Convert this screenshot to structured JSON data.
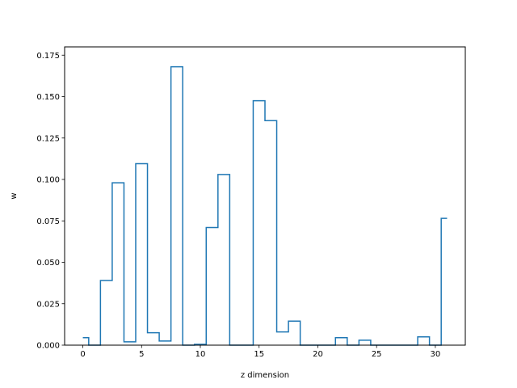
{
  "chart_data": {
    "type": "line",
    "drawstyle": "steps-mid",
    "title": "",
    "xlabel": "z dimension",
    "ylabel": "w",
    "xlim": [
      -1.55,
      32.55
    ],
    "ylim": [
      0,
      0.18
    ],
    "xticks": [
      0,
      5,
      10,
      15,
      20,
      25,
      30
    ],
    "xtick_labels": [
      "0",
      "5",
      "10",
      "15",
      "20",
      "25",
      "30"
    ],
    "yticks": [
      0,
      0.025,
      0.05,
      0.075,
      0.1,
      0.125,
      0.15,
      0.175
    ],
    "ytick_labels": [
      "0.000",
      "0.025",
      "0.050",
      "0.075",
      "0.100",
      "0.125",
      "0.150",
      "0.175"
    ],
    "grid": false,
    "series": [
      {
        "color": "#1f77b4",
        "x": [
          0,
          1,
          2,
          3,
          4,
          5,
          6,
          7,
          8,
          9,
          10,
          11,
          12,
          13,
          14,
          15,
          16,
          17,
          18,
          19,
          20,
          21,
          22,
          23,
          24,
          25,
          26,
          27,
          28,
          29,
          30,
          31
        ],
        "y": [
          0.0045,
          0.0,
          0.039,
          0.098,
          0.002,
          0.1095,
          0.0075,
          0.0025,
          0.168,
          0.0,
          0.0005,
          0.071,
          0.103,
          0.0,
          0.0,
          0.1475,
          0.1355,
          0.008,
          0.0145,
          0.0,
          0.0,
          0.0,
          0.0045,
          0.0,
          0.003,
          0.0,
          0.0,
          0.0,
          0.0,
          0.005,
          0.0,
          0.0765
        ]
      }
    ]
  }
}
